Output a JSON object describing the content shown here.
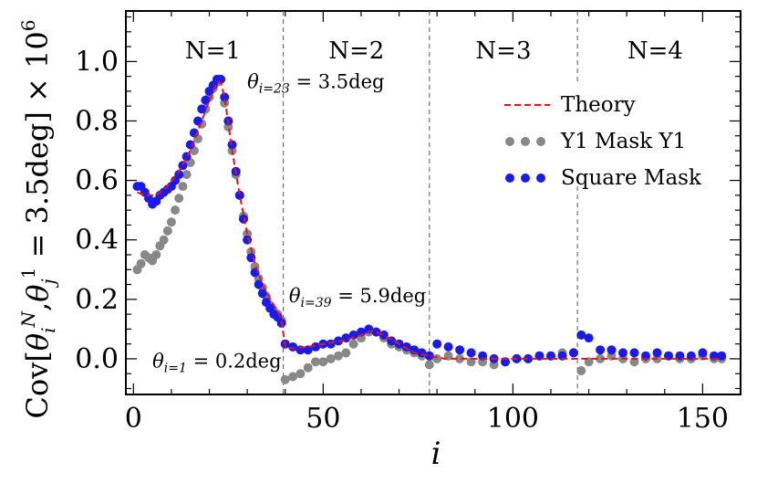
{
  "chart_data": {
    "type": "scatter",
    "xlabel": "i",
    "ylabel": "Cov[θ_i^N, θ_j^1 = 3.5deg] × 10^6",
    "xlim": [
      -2,
      160
    ],
    "ylim": [
      -0.12,
      1.17
    ],
    "x_ticks": [
      "0",
      "50",
      "100",
      "150"
    ],
    "y_ticks": [
      "0.0",
      "0.2",
      "0.4",
      "0.6",
      "0.8",
      "1.0"
    ],
    "sections": [
      "N=1",
      "N=2",
      "N=3",
      "N=4"
    ],
    "boundaries": [
      39.5,
      78,
      117
    ],
    "annotations": [
      {
        "text": "θ_{i=23} = 3.5deg",
        "x": 30,
        "y": 0.91
      },
      {
        "text": "θ_{i=39} = 5.9deg",
        "x": 41,
        "y": 0.19
      },
      {
        "text": "θ_{i=1} = 0.2deg",
        "x": 5,
        "y": -0.03
      }
    ],
    "legend": {
      "position": "top-right",
      "entries": [
        {
          "label": "Theory",
          "color": "#ee1111",
          "style": "dashed"
        },
        {
          "label": "Y1 Mask Y1",
          "color": "#888888",
          "style": "dots"
        },
        {
          "label": "Square Mask",
          "color": "#1a1aee",
          "style": "dots"
        }
      ]
    },
    "series": [
      {
        "name": "Theory",
        "color": "#ee1111",
        "x": [
          1,
          3,
          6,
          9,
          12,
          15,
          18,
          20,
          22,
          23,
          24,
          26,
          28,
          30,
          32,
          34,
          36,
          38,
          39,
          40,
          42,
          46,
          50,
          55,
          60,
          63,
          66,
          70,
          74,
          78,
          82,
          90,
          100,
          110,
          117,
          120,
          130,
          140,
          150,
          155
        ],
        "y": [
          0.56,
          0.55,
          0.55,
          0.58,
          0.63,
          0.7,
          0.8,
          0.87,
          0.93,
          0.93,
          0.88,
          0.7,
          0.55,
          0.42,
          0.32,
          0.25,
          0.2,
          0.16,
          0.13,
          0.04,
          0.035,
          0.04,
          0.05,
          0.06,
          0.08,
          0.095,
          0.08,
          0.05,
          0.02,
          0.01,
          0.0,
          0.0,
          0.0,
          0.0,
          0.0,
          0.0,
          0.0,
          0.0,
          0.0,
          0.0
        ]
      },
      {
        "name": "Y1 Mask Y1",
        "color": "#888888",
        "x": [
          1,
          2,
          3,
          4,
          5,
          6,
          7,
          8,
          9,
          10,
          11,
          12,
          13,
          14,
          15,
          16,
          17,
          18,
          19,
          20,
          21,
          22,
          23,
          24,
          25,
          26,
          27,
          28,
          29,
          30,
          31,
          32,
          33,
          34,
          35,
          36,
          37,
          38,
          39,
          40,
          42,
          44,
          46,
          48,
          50,
          52,
          54,
          56,
          58,
          60,
          62,
          64,
          66,
          68,
          70,
          72,
          74,
          76,
          78,
          80,
          83,
          86,
          89,
          92,
          95,
          98,
          101,
          104,
          107,
          110,
          113,
          116,
          118,
          120,
          123,
          126,
          129,
          132,
          135,
          138,
          141,
          144,
          147,
          150,
          153,
          155
        ],
        "y": [
          0.3,
          0.32,
          0.35,
          0.34,
          0.33,
          0.35,
          0.38,
          0.4,
          0.43,
          0.46,
          0.5,
          0.54,
          0.58,
          0.62,
          0.66,
          0.7,
          0.74,
          0.79,
          0.84,
          0.88,
          0.91,
          0.93,
          0.94,
          0.86,
          0.78,
          0.7,
          0.62,
          0.55,
          0.48,
          0.42,
          0.36,
          0.31,
          0.27,
          0.24,
          0.21,
          0.18,
          0.16,
          0.15,
          0.13,
          -0.07,
          -0.06,
          -0.05,
          -0.03,
          -0.01,
          -0.01,
          0.0,
          0.01,
          0.02,
          0.05,
          0.07,
          0.09,
          0.09,
          0.07,
          0.05,
          0.04,
          0.03,
          0.02,
          0.01,
          -0.02,
          0.0,
          0.01,
          0.0,
          -0.01,
          -0.01,
          -0.02,
          -0.01,
          0.0,
          0.0,
          0.01,
          0.01,
          0.02,
          0.02,
          -0.04,
          -0.01,
          0.0,
          0.01,
          0.0,
          -0.01,
          0.0,
          0.0,
          0.01,
          0.0,
          0.0,
          0.01,
          0.0,
          0.0
        ]
      },
      {
        "name": "Square Mask",
        "color": "#1a1aee",
        "x": [
          1,
          2,
          3,
          4,
          5,
          6,
          7,
          8,
          9,
          10,
          11,
          12,
          13,
          14,
          15,
          16,
          17,
          18,
          19,
          20,
          21,
          22,
          23,
          24,
          25,
          26,
          27,
          28,
          29,
          30,
          31,
          32,
          33,
          34,
          35,
          36,
          37,
          38,
          39,
          40,
          42,
          44,
          46,
          48,
          50,
          52,
          54,
          56,
          58,
          60,
          62,
          64,
          66,
          68,
          70,
          72,
          74,
          76,
          78,
          80,
          83,
          86,
          89,
          92,
          95,
          98,
          101,
          104,
          107,
          110,
          113,
          116,
          118,
          120,
          123,
          126,
          129,
          132,
          135,
          138,
          141,
          144,
          147,
          150,
          153,
          155
        ],
        "y": [
          0.58,
          0.58,
          0.56,
          0.54,
          0.52,
          0.53,
          0.55,
          0.56,
          0.57,
          0.58,
          0.6,
          0.62,
          0.65,
          0.68,
          0.72,
          0.76,
          0.8,
          0.84,
          0.87,
          0.9,
          0.92,
          0.94,
          0.94,
          0.88,
          0.8,
          0.72,
          0.63,
          0.55,
          0.47,
          0.4,
          0.34,
          0.29,
          0.25,
          0.22,
          0.19,
          0.17,
          0.15,
          0.14,
          0.12,
          0.05,
          0.04,
          0.03,
          0.03,
          0.04,
          0.05,
          0.05,
          0.06,
          0.07,
          0.08,
          0.09,
          0.1,
          0.09,
          0.08,
          0.06,
          0.05,
          0.04,
          0.03,
          0.02,
          0.01,
          0.05,
          0.04,
          0.03,
          0.02,
          0.01,
          0.0,
          -0.01,
          0.0,
          0.0,
          0.01,
          0.01,
          0.01,
          0.02,
          0.08,
          0.07,
          0.03,
          0.03,
          0.02,
          0.02,
          0.01,
          0.02,
          0.01,
          0.01,
          0.01,
          0.02,
          0.01,
          0.01
        ]
      }
    ]
  }
}
